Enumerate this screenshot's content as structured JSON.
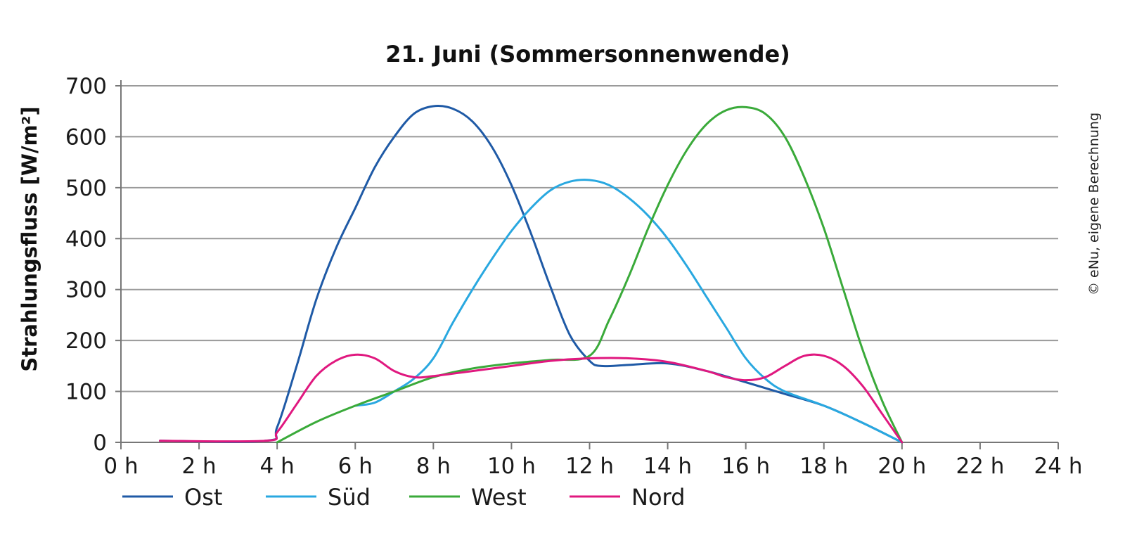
{
  "chart_data": {
    "type": "line",
    "title": "21. Juni (Sommersonnenwende)",
    "xlabel": "",
    "ylabel": "Strahlungsfluss [W/m²]",
    "credit": "© eNu, eigene Berechnung",
    "xlim": [
      0,
      24
    ],
    "ylim": [
      0,
      700
    ],
    "grid": true,
    "legend_position": "bottom",
    "x_ticks": [
      {
        "value": 0,
        "label": "0 h"
      },
      {
        "value": 2,
        "label": "2 h"
      },
      {
        "value": 4,
        "label": "4 h"
      },
      {
        "value": 6,
        "label": "6 h"
      },
      {
        "value": 8,
        "label": "8 h"
      },
      {
        "value": 10,
        "label": "10 h"
      },
      {
        "value": 12,
        "label": "12 h"
      },
      {
        "value": 14,
        "label": "14 h"
      },
      {
        "value": 16,
        "label": "16 h"
      },
      {
        "value": 18,
        "label": "18 h"
      },
      {
        "value": 20,
        "label": "20 h"
      },
      {
        "value": 22,
        "label": "22 h"
      },
      {
        "value": 24,
        "label": "24 h"
      }
    ],
    "y_ticks": [
      {
        "value": 0,
        "label": "0"
      },
      {
        "value": 100,
        "label": "100"
      },
      {
        "value": 200,
        "label": "200"
      },
      {
        "value": 300,
        "label": "300"
      },
      {
        "value": 400,
        "label": "400"
      },
      {
        "value": 500,
        "label": "500"
      },
      {
        "value": 600,
        "label": "600"
      },
      {
        "value": 700,
        "label": "700"
      }
    ],
    "series": [
      {
        "name": "Ost",
        "color": "#1f5aa6",
        "x": [
          1,
          3.7,
          4,
          4.5,
          5,
          5.5,
          6,
          6.5,
          7,
          7.5,
          8,
          8.5,
          9,
          9.5,
          10,
          10.5,
          11,
          11.5,
          12,
          12.3,
          13,
          14,
          15,
          16,
          17,
          18,
          19,
          20
        ],
        "y": [
          3,
          3,
          30,
          150,
          280,
          380,
          460,
          540,
          600,
          645,
          660,
          655,
          630,
          580,
          505,
          410,
          305,
          210,
          160,
          150,
          152,
          155,
          140,
          118,
          95,
          72,
          38,
          0
        ]
      },
      {
        "name": "Süd",
        "color": "#29a8e0",
        "x": [
          6,
          6.5,
          7,
          7.5,
          8,
          8.5,
          9,
          9.5,
          10,
          10.5,
          11,
          11.5,
          12,
          12.5,
          13,
          13.5,
          14,
          14.5,
          15,
          15.5,
          16,
          16.5,
          17,
          18,
          19,
          20
        ],
        "y": [
          72,
          78,
          100,
          125,
          165,
          235,
          300,
          360,
          415,
          460,
          495,
          512,
          515,
          505,
          480,
          445,
          400,
          345,
          285,
          225,
          165,
          125,
          100,
          72,
          38,
          0
        ]
      },
      {
        "name": "West",
        "color": "#3aaa3a",
        "x": [
          4,
          5,
          6,
          7,
          8,
          9,
          10,
          11,
          12,
          12.5,
          13,
          13.5,
          14,
          14.5,
          15,
          15.5,
          16,
          16.5,
          17,
          17.5,
          18,
          18.5,
          19,
          19.5,
          20
        ],
        "y": [
          0,
          40,
          72,
          100,
          128,
          145,
          155,
          162,
          170,
          240,
          325,
          420,
          505,
          575,
          625,
          652,
          658,
          645,
          600,
          520,
          420,
          300,
          180,
          80,
          0
        ]
      },
      {
        "name": "Nord",
        "color": "#e0187f",
        "x": [
          1,
          3.7,
          4,
          4.5,
          5,
          5.5,
          6,
          6.5,
          7,
          7.5,
          8,
          9,
          10,
          11,
          12,
          13,
          14,
          15,
          15.5,
          16,
          16.5,
          17,
          17.5,
          18,
          18.5,
          19,
          19.5,
          20
        ],
        "y": [
          3,
          3,
          20,
          75,
          130,
          160,
          172,
          165,
          140,
          128,
          130,
          140,
          150,
          160,
          165,
          165,
          158,
          140,
          128,
          122,
          128,
          150,
          170,
          170,
          150,
          110,
          55,
          0
        ]
      }
    ]
  }
}
